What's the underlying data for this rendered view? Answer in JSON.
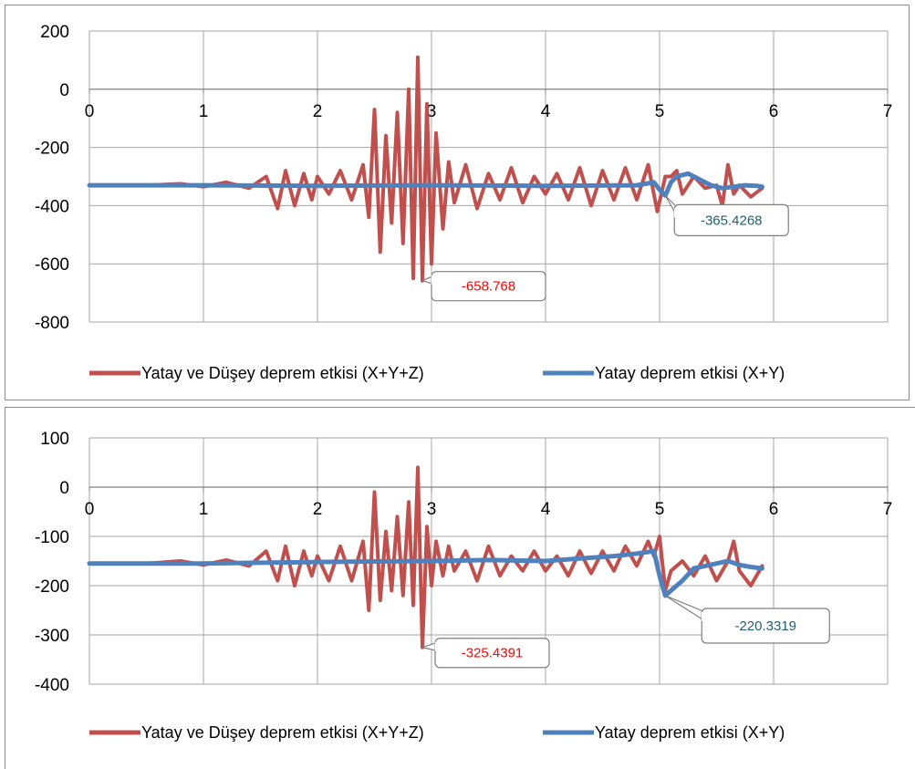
{
  "charts_meta": [
    {
      "colors": {
        "xyz": "#c0504d",
        "xy": "#4f81bd",
        "callout_xyz_text": "#ff0000",
        "callout_xy_text": "#1f5f6e",
        "grid": "#a6a6a6"
      },
      "legend": {
        "xyz_label": "Yatay ve Düşey deprem etkisi (X+Y+Z)",
        "xy_label": "Yatay deprem etkisi (X+Y)"
      },
      "callouts": {
        "xyz": "-658.768",
        "xy": "-365.4268"
      }
    },
    {
      "colors": {
        "xyz": "#c0504d",
        "xy": "#4f81bd",
        "callout_xyz_text": "#ff0000",
        "callout_xy_text": "#1f5f6e",
        "grid": "#a6a6a6"
      },
      "legend": {
        "xyz_label": "Yatay ve Düşey deprem etkisi (X+Y+Z)",
        "xy_label": "Yatay deprem etkisi (X+Y)"
      },
      "callouts": {
        "xyz": "-325.4391",
        "xy": "-220.3319"
      }
    }
  ],
  "chart_data": [
    {
      "type": "line",
      "title": "",
      "xlabel": "",
      "ylabel": "",
      "xlim": [
        0,
        7
      ],
      "ylim": [
        -800,
        200
      ],
      "x_ticks": [
        "0",
        "1",
        "2",
        "3",
        "4",
        "5",
        "6",
        "7"
      ],
      "y_ticks": [
        "200",
        "0",
        "-200",
        "-400",
        "-600",
        "-800"
      ],
      "grid": true,
      "legend_position": "bottom",
      "series": [
        {
          "name": "Yatay ve Düşey deprem etkisi (X+Y+Z)",
          "x": [
            0,
            0.5,
            0.8,
            1.0,
            1.2,
            1.4,
            1.55,
            1.65,
            1.72,
            1.8,
            1.88,
            1.95,
            2.0,
            2.1,
            2.2,
            2.3,
            2.4,
            2.45,
            2.5,
            2.55,
            2.6,
            2.65,
            2.7,
            2.75,
            2.8,
            2.84,
            2.88,
            2.92,
            2.96,
            3.0,
            3.04,
            3.1,
            3.15,
            3.2,
            3.3,
            3.4,
            3.5,
            3.6,
            3.7,
            3.8,
            3.9,
            4.0,
            4.1,
            4.2,
            4.3,
            4.4,
            4.5,
            4.6,
            4.7,
            4.8,
            4.9,
            4.98,
            5.05,
            5.1,
            5.15,
            5.2,
            5.3,
            5.4,
            5.5,
            5.55,
            5.6,
            5.65,
            5.7,
            5.8,
            5.9
          ],
          "y": [
            -330,
            -330,
            -325,
            -335,
            -320,
            -340,
            -300,
            -410,
            -280,
            -400,
            -290,
            -380,
            -300,
            -360,
            -280,
            -380,
            -260,
            -440,
            -70,
            -560,
            -160,
            -460,
            -80,
            -530,
            0,
            -650,
            110,
            -658,
            -50,
            -600,
            -150,
            -480,
            -250,
            -390,
            -260,
            -410,
            -290,
            -380,
            -270,
            -390,
            -300,
            -360,
            -290,
            -380,
            -270,
            -400,
            -280,
            -380,
            -270,
            -380,
            -260,
            -420,
            -300,
            -300,
            -280,
            -360,
            -300,
            -340,
            -330,
            -400,
            -260,
            -360,
            -330,
            -370,
            -340
          ]
        },
        {
          "name": "Yatay deprem etkisi (X+Y)",
          "x": [
            0,
            1,
            2,
            3,
            4,
            4.8,
            4.95,
            5.0,
            5.05,
            5.1,
            5.15,
            5.25,
            5.35,
            5.45,
            5.55,
            5.65,
            5.75,
            5.85,
            5.9
          ],
          "y": [
            -330,
            -330,
            -332,
            -330,
            -332,
            -330,
            -320,
            -345,
            -365.4268,
            -320,
            -300,
            -290,
            -310,
            -330,
            -340,
            -335,
            -330,
            -332,
            -335
          ]
        }
      ],
      "annotations": [
        "-658.768",
        "-365.4268"
      ]
    },
    {
      "type": "line",
      "title": "",
      "xlabel": "",
      "ylabel": "",
      "xlim": [
        0,
        7
      ],
      "ylim": [
        -400,
        100
      ],
      "x_ticks": [
        "0",
        "1",
        "2",
        "3",
        "4",
        "5",
        "6",
        "7"
      ],
      "y_ticks": [
        "100",
        "0",
        "-100",
        "-200",
        "-300",
        "-400"
      ],
      "grid": true,
      "legend_position": "bottom",
      "series": [
        {
          "name": "Yatay ve Düşey deprem etkisi (X+Y+Z)",
          "x": [
            0,
            0.5,
            0.8,
            1.0,
            1.2,
            1.4,
            1.55,
            1.65,
            1.72,
            1.8,
            1.88,
            1.95,
            2.0,
            2.1,
            2.2,
            2.3,
            2.4,
            2.45,
            2.5,
            2.55,
            2.6,
            2.65,
            2.7,
            2.75,
            2.8,
            2.84,
            2.88,
            2.92,
            2.96,
            3.0,
            3.04,
            3.1,
            3.15,
            3.2,
            3.3,
            3.4,
            3.5,
            3.6,
            3.7,
            3.8,
            3.9,
            4.0,
            4.1,
            4.2,
            4.3,
            4.4,
            4.5,
            4.6,
            4.7,
            4.8,
            4.9,
            4.95,
            5.0,
            5.05,
            5.1,
            5.2,
            5.3,
            5.4,
            5.5,
            5.6,
            5.65,
            5.7,
            5.8,
            5.9
          ],
          "y": [
            -155,
            -155,
            -150,
            -158,
            -148,
            -160,
            -130,
            -190,
            -120,
            -200,
            -130,
            -180,
            -140,
            -190,
            -120,
            -190,
            -110,
            -250,
            -10,
            -230,
            -90,
            -210,
            -60,
            -220,
            -30,
            -240,
            40,
            -325.4391,
            -80,
            -200,
            -110,
            -180,
            -120,
            -170,
            -130,
            -190,
            -120,
            -180,
            -140,
            -170,
            -130,
            -170,
            -140,
            -180,
            -130,
            -175,
            -130,
            -170,
            -120,
            -160,
            -110,
            -140,
            -100,
            -210,
            -170,
            -150,
            -180,
            -140,
            -190,
            -150,
            -110,
            -170,
            -200,
            -160
          ]
        },
        {
          "name": "Yatay deprem etkisi (X+Y)",
          "x": [
            0,
            1,
            2,
            3,
            3.5,
            4.0,
            4.3,
            4.6,
            4.8,
            4.95,
            5.0,
            5.05,
            5.1,
            5.2,
            5.3,
            5.4,
            5.5,
            5.6,
            5.7,
            5.8,
            5.9
          ],
          "y": [
            -155,
            -155,
            -152,
            -150,
            -148,
            -150,
            -145,
            -140,
            -135,
            -130,
            -180,
            -220.3319,
            -210,
            -190,
            -165,
            -160,
            -155,
            -150,
            -158,
            -162,
            -165
          ]
        }
      ],
      "annotations": [
        "-325.4391",
        "-220.3319"
      ]
    }
  ]
}
